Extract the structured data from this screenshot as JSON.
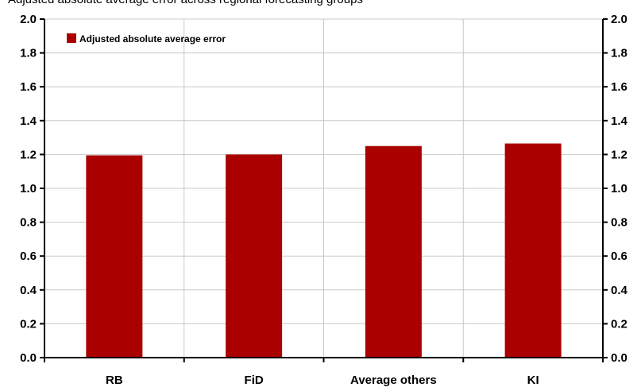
{
  "caption": "Adjusted absolute average error across regional forecasting groups",
  "colors": {
    "bar": "#aa0000",
    "grid": "#c8c8c8",
    "axis": "#000000"
  },
  "chart_data": {
    "type": "bar",
    "categories": [
      "RB",
      "FiD",
      "Average others",
      "KI"
    ],
    "series": [
      {
        "name": "Adjusted absolute average error",
        "values": [
          1.195,
          1.2,
          1.25,
          1.265
        ]
      }
    ],
    "ylim": [
      0,
      2.0
    ],
    "yticks": [
      "0.0",
      "0.2",
      "0.4",
      "0.6",
      "0.8",
      "1.0",
      "1.2",
      "1.4",
      "1.6",
      "1.8",
      "2.0"
    ],
    "y2ticks": [
      "0.0",
      "0.2",
      "0.4",
      "0.6",
      "0.8",
      "1.0",
      "1.2",
      "1.4",
      "1.6",
      "1.8",
      "2.0"
    ],
    "legend_position": "top-left",
    "grid": true
  }
}
